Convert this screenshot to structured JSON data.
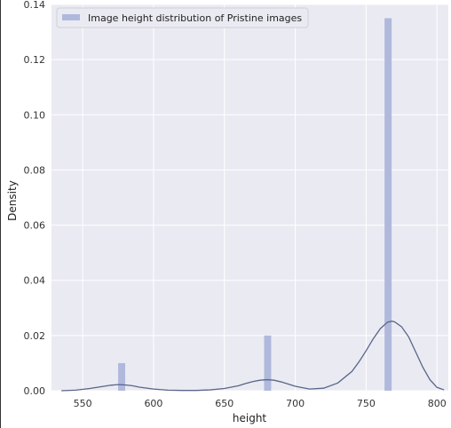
{
  "chart_data": {
    "type": "bar",
    "title": "",
    "xlabel": "height",
    "ylabel": "Density",
    "xlim": [
      528,
      808
    ],
    "ylim": [
      0,
      0.14
    ],
    "x_ticks": [
      550,
      600,
      650,
      700,
      750,
      800
    ],
    "y_ticks": [
      0.0,
      0.02,
      0.04,
      0.06,
      0.08,
      0.1,
      0.12,
      0.14
    ],
    "grid": true,
    "legend": {
      "position": "top-left",
      "entries": [
        "Image height distribution of Pristine images"
      ]
    },
    "colors": {
      "background": "#eaeaf2",
      "grid": "#ffffff",
      "bars": "#b0b9dc",
      "kde": "#5a6589"
    },
    "series": [
      {
        "name": "Image height distribution of Pristine images",
        "type": "histogram",
        "bins": [
          {
            "x0": 575,
            "x1": 580,
            "density": 0.01
          },
          {
            "x0": 678,
            "x1": 683,
            "density": 0.02
          },
          {
            "x0": 763,
            "x1": 768,
            "density": 0.135
          }
        ]
      },
      {
        "type": "kde",
        "x": [
          535,
          545,
          555,
          565,
          570,
          575,
          580,
          585,
          590,
          600,
          610,
          620,
          630,
          640,
          650,
          660,
          665,
          670,
          675,
          680,
          685,
          690,
          695,
          700,
          710,
          720,
          730,
          740,
          745,
          750,
          755,
          760,
          765,
          768,
          770,
          775,
          780,
          785,
          790,
          795,
          800,
          805
        ],
        "y": [
          0.0,
          0.0002,
          0.0008,
          0.0016,
          0.002,
          0.0022,
          0.0021,
          0.0018,
          0.0013,
          0.0006,
          0.0002,
          0.0001,
          0.0001,
          0.0003,
          0.0008,
          0.0018,
          0.0026,
          0.0033,
          0.0038,
          0.004,
          0.0038,
          0.0032,
          0.0024,
          0.0016,
          0.0006,
          0.0009,
          0.0028,
          0.007,
          0.0105,
          0.0145,
          0.0188,
          0.0225,
          0.0248,
          0.0252,
          0.025,
          0.0232,
          0.0195,
          0.014,
          0.0085,
          0.004,
          0.0012,
          0.0003
        ]
      }
    ]
  }
}
